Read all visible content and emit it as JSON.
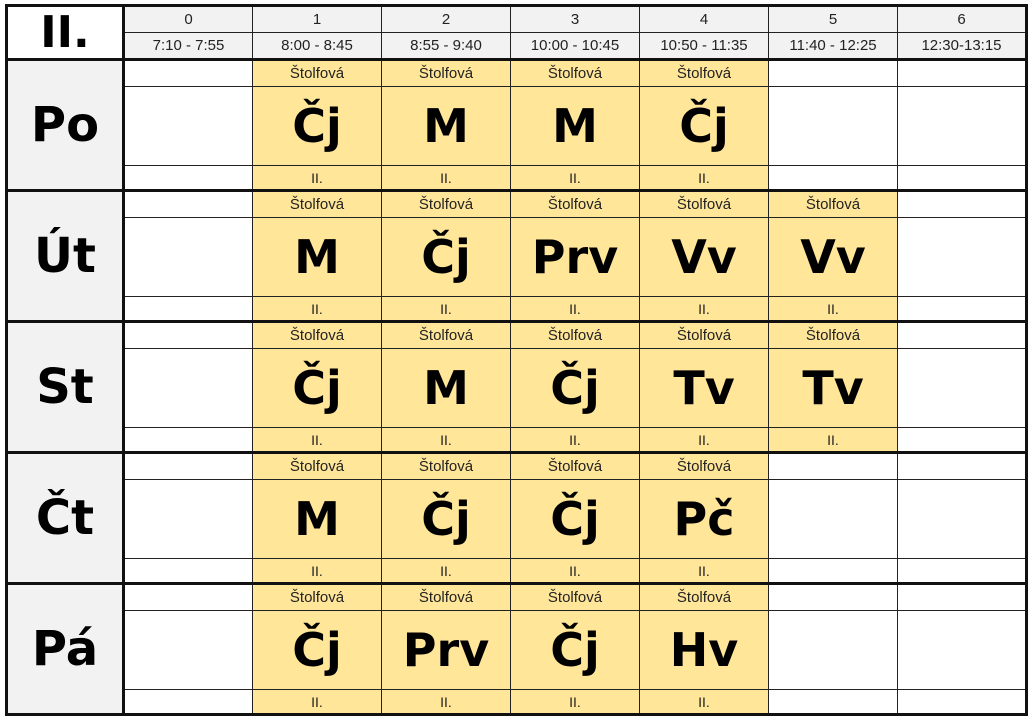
{
  "class_name": "II.",
  "periods": [
    {
      "number": "0",
      "time": "7:10 - 7:55"
    },
    {
      "number": "1",
      "time": "8:00 - 8:45"
    },
    {
      "number": "2",
      "time": "8:55 - 9:40"
    },
    {
      "number": "3",
      "time": "10:00 - 10:45"
    },
    {
      "number": "4",
      "time": "10:50 - 11:35"
    },
    {
      "number": "5",
      "time": "11:40 - 12:25"
    },
    {
      "number": "6",
      "time": "12:30-13:15"
    }
  ],
  "highlight_color": "#ffe699",
  "days": [
    {
      "name": "Po",
      "lessons": [
        null,
        {
          "teacher": "Štolfová",
          "subject": "Čj",
          "class": "II."
        },
        {
          "teacher": "Štolfová",
          "subject": "M",
          "class": "II."
        },
        {
          "teacher": "Štolfová",
          "subject": "M",
          "class": "II."
        },
        {
          "teacher": "Štolfová",
          "subject": "Čj",
          "class": "II."
        },
        null,
        null
      ]
    },
    {
      "name": "Út",
      "lessons": [
        null,
        {
          "teacher": "Štolfová",
          "subject": "M",
          "class": "II."
        },
        {
          "teacher": "Štolfová",
          "subject": "Čj",
          "class": "II."
        },
        {
          "teacher": "Štolfová",
          "subject": "Prv",
          "class": "II."
        },
        {
          "teacher": "Štolfová",
          "subject": "Vv",
          "class": "II."
        },
        {
          "teacher": "Štolfová",
          "subject": "Vv",
          "class": "II."
        },
        null
      ]
    },
    {
      "name": "St",
      "lessons": [
        null,
        {
          "teacher": "Štolfová",
          "subject": "Čj",
          "class": "II."
        },
        {
          "teacher": "Štolfová",
          "subject": "M",
          "class": "II."
        },
        {
          "teacher": "Štolfová",
          "subject": "Čj",
          "class": "II."
        },
        {
          "teacher": "Štolfová",
          "subject": "Tv",
          "class": "II."
        },
        {
          "teacher": "Štolfová",
          "subject": "Tv",
          "class": "II."
        },
        null
      ]
    },
    {
      "name": "Čt",
      "lessons": [
        null,
        {
          "teacher": "Štolfová",
          "subject": "M",
          "class": "II."
        },
        {
          "teacher": "Štolfová",
          "subject": "Čj",
          "class": "II."
        },
        {
          "teacher": "Štolfová",
          "subject": "Čj",
          "class": "II."
        },
        {
          "teacher": "Štolfová",
          "subject": "Pč",
          "class": "II."
        },
        null,
        null
      ]
    },
    {
      "name": "Pá",
      "lessons": [
        null,
        {
          "teacher": "Štolfová",
          "subject": "Čj",
          "class": "II."
        },
        {
          "teacher": "Štolfová",
          "subject": "Prv",
          "class": "II."
        },
        {
          "teacher": "Štolfová",
          "subject": "Čj",
          "class": "II."
        },
        {
          "teacher": "Štolfová",
          "subject": "Hv",
          "class": "II."
        },
        null,
        null
      ]
    }
  ]
}
